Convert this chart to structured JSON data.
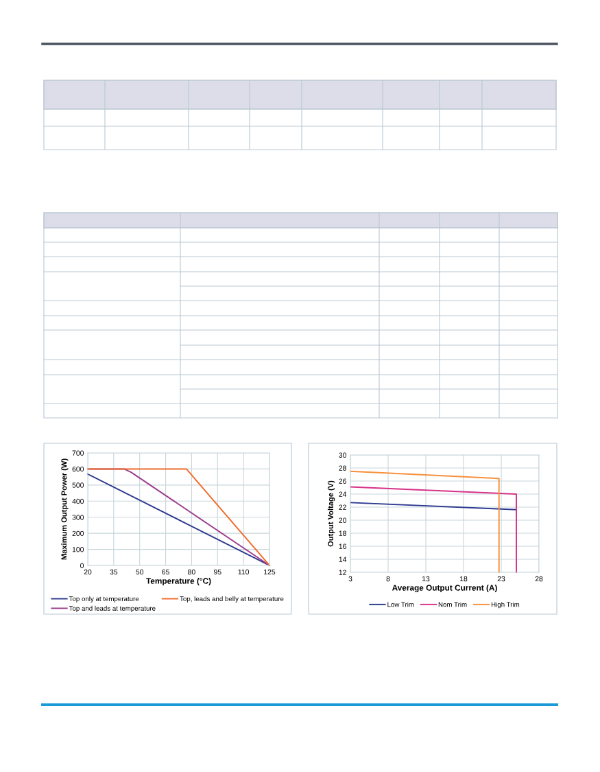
{
  "chart_data": [
    {
      "type": "line",
      "xlabel": "Temperature (°C)",
      "ylabel": "Maximum Output Power (W)",
      "xlim": [
        20,
        125
      ],
      "xticks": [
        20,
        35,
        50,
        65,
        80,
        95,
        110,
        125
      ],
      "ylim": [
        0,
        700
      ],
      "yticks": [
        0,
        100,
        200,
        300,
        400,
        500,
        600,
        700
      ],
      "grid": true,
      "legend": "bottom",
      "marker": "none",
      "line_style": "solid",
      "series": [
        {
          "name": "Top only at temperature",
          "color": "#2e3a8c",
          "x": [
            20,
            125
          ],
          "values": [
            568,
            0
          ]
        },
        {
          "name": "Top and leads at temperature",
          "color": "#9b3d8f",
          "x": [
            20,
            41,
            45,
            125
          ],
          "values": [
            600,
            600,
            580,
            0
          ]
        },
        {
          "name": "Top, leads and belly at temperature",
          "color": "#f26b2a",
          "x": [
            20,
            77,
            125
          ],
          "values": [
            600,
            600,
            0
          ]
        }
      ]
    },
    {
      "type": "line",
      "xlabel": "Average Output Current (A)",
      "ylabel": "Output Voltage (V)",
      "xlim": [
        3,
        28
      ],
      "xticks": [
        3,
        8,
        13,
        18,
        23,
        28
      ],
      "ylim": [
        12,
        30
      ],
      "yticks": [
        12,
        14,
        16,
        18,
        20,
        22,
        24,
        26,
        28,
        30
      ],
      "grid": true,
      "legend": "bottom",
      "marker": "none",
      "line_style": "solid",
      "series": [
        {
          "name": "Low Trim",
          "color": "#2b3990",
          "x": [
            3,
            25
          ],
          "values": [
            22.7,
            21.6
          ]
        },
        {
          "name": "Nom Trim",
          "color": "#d6338a",
          "x": [
            3,
            25,
            25
          ],
          "values": [
            25.1,
            24.0,
            12
          ]
        },
        {
          "name": "High Trim",
          "color": "#f7913d",
          "x": [
            3,
            22.7,
            22.7
          ],
          "values": [
            27.5,
            26.4,
            12
          ]
        }
      ]
    }
  ]
}
